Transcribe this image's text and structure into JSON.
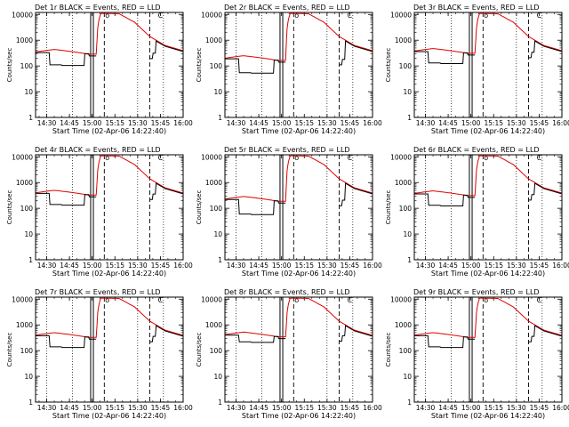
{
  "chart_data": [
    {
      "type": "line",
      "title": "Det 1r BLACK = Events, RED = LLD",
      "xlabel": "Start Time (02-Apr-06 14:22:40)",
      "ylabel": "Counts/sec",
      "x_ticklabels": [
        "14:30",
        "14:45",
        "15:00",
        "15:15",
        "15:30",
        "15:45",
        "16:00"
      ],
      "y_ticklabels": [
        "1",
        "10",
        "100",
        "1000",
        "10000"
      ],
      "xlim": [
        "14:22:40",
        "16:00"
      ],
      "ylim": [
        1,
        12000
      ],
      "yscale": "log",
      "black_low": 110,
      "red_low": 350
    },
    {
      "type": "line",
      "title": "Det 2r BLACK = Events, RED = LLD",
      "xlabel": "Start Time (02-Apr-06 14:22:40)",
      "ylabel": "Counts/sec",
      "x_ticklabels": [
        "14:30",
        "14:45",
        "15:00",
        "15:15",
        "15:30",
        "15:45",
        "16:00"
      ],
      "y_ticklabels": [
        "1",
        "10",
        "100",
        "1000",
        "10000"
      ],
      "xlim": [
        "14:22:40",
        "16:00"
      ],
      "ylim": [
        1,
        12000
      ],
      "yscale": "log",
      "black_low": 55,
      "red_low": 200
    },
    {
      "type": "line",
      "title": "Det 3r BLACK = Events, RED = LLD",
      "xlabel": "Start Time (02-Apr-06 14:22:40)",
      "ylabel": "Counts/sec",
      "x_ticklabels": [
        "14:30",
        "14:45",
        "15:00",
        "15:15",
        "15:30",
        "15:45",
        "16:00"
      ],
      "y_ticklabels": [
        "1",
        "10",
        "100",
        "1000",
        "10000"
      ],
      "xlim": [
        "14:22:40",
        "16:00"
      ],
      "ylim": [
        1,
        12000
      ],
      "yscale": "log",
      "black_low": 130,
      "red_low": 380
    },
    {
      "type": "line",
      "title": "Det 4r BLACK = Events, RED = LLD",
      "xlabel": "Start Time (02-Apr-06 14:22:40)",
      "ylabel": "Counts/sec",
      "x_ticklabels": [
        "14:30",
        "14:45",
        "15:00",
        "15:15",
        "15:30",
        "15:45",
        "16:00"
      ],
      "y_ticklabels": [
        "1",
        "10",
        "100",
        "1000",
        "10000"
      ],
      "xlim": [
        "14:22:40",
        "16:00"
      ],
      "ylim": [
        1,
        12000
      ],
      "yscale": "log",
      "black_low": 140,
      "red_low": 400
    },
    {
      "type": "line",
      "title": "Det 5r BLACK = Events, RED = LLD",
      "xlabel": "Start Time (02-Apr-06 14:22:40)",
      "ylabel": "Counts/sec",
      "x_ticklabels": [
        "14:30",
        "14:45",
        "15:00",
        "15:15",
        "15:30",
        "15:45",
        "16:00"
      ],
      "y_ticklabels": [
        "1",
        "10",
        "100",
        "1000",
        "10000"
      ],
      "xlim": [
        "14:22:40",
        "16:00"
      ],
      "ylim": [
        1,
        12000
      ],
      "yscale": "log",
      "black_low": 60,
      "red_low": 230
    },
    {
      "type": "line",
      "title": "Det 6r BLACK = Events, RED = LLD",
      "xlabel": "Start Time (02-Apr-06 14:22:40)",
      "ylabel": "Counts/sec",
      "x_ticklabels": [
        "14:30",
        "14:45",
        "15:00",
        "15:15",
        "15:30",
        "15:45",
        "16:00"
      ],
      "y_ticklabels": [
        "1",
        "10",
        "100",
        "1000",
        "10000"
      ],
      "xlim": [
        "14:22:40",
        "16:00"
      ],
      "ylim": [
        1,
        12000
      ],
      "yscale": "log",
      "black_low": 130,
      "red_low": 380
    },
    {
      "type": "line",
      "title": "Det 7r BLACK = Events, RED = LLD",
      "xlabel": "Start Time (02-Apr-06 14:22:40)",
      "ylabel": "Counts/sec",
      "x_ticklabels": [
        "14:30",
        "14:45",
        "15:00",
        "15:15",
        "15:30",
        "15:45",
        "16:00"
      ],
      "y_ticklabels": [
        "1",
        "10",
        "100",
        "1000",
        "10000"
      ],
      "xlim": [
        "14:22:40",
        "16:00"
      ],
      "ylim": [
        1,
        12000
      ],
      "yscale": "log",
      "black_low": 140,
      "red_low": 400
    },
    {
      "type": "line",
      "title": "Det 8r BLACK = Events, RED = LLD",
      "xlabel": "Start Time (02-Apr-06 14:22:40)",
      "ylabel": "Counts/sec",
      "x_ticklabels": [
        "14:30",
        "14:45",
        "15:00",
        "15:15",
        "15:30",
        "15:45",
        "16:00"
      ],
      "y_ticklabels": [
        "1",
        "10",
        "100",
        "1000",
        "10000"
      ],
      "xlim": [
        "14:22:40",
        "16:00"
      ],
      "ylim": [
        1,
        12000
      ],
      "yscale": "log",
      "black_low": 220,
      "red_low": 420
    },
    {
      "type": "line",
      "title": "Det 9r BLACK = Events, RED = LLD",
      "xlabel": "Start Time (02-Apr-06 14:22:40)",
      "ylabel": "Counts/sec",
      "x_ticklabels": [
        "14:30",
        "14:45",
        "15:00",
        "15:15",
        "15:30",
        "15:45",
        "16:00"
      ],
      "y_ticklabels": [
        "1",
        "10",
        "100",
        "1000",
        "10000"
      ],
      "xlim": [
        "14:22:40",
        "16:00"
      ],
      "ylim": [
        1,
        12000
      ],
      "yscale": "log",
      "black_low": 140,
      "red_low": 400
    }
  ],
  "marker_labels": {
    "o": "o",
    "c": "C"
  },
  "colors": {
    "events": "#000000",
    "lld": "#e00000",
    "axes": "#000000"
  }
}
